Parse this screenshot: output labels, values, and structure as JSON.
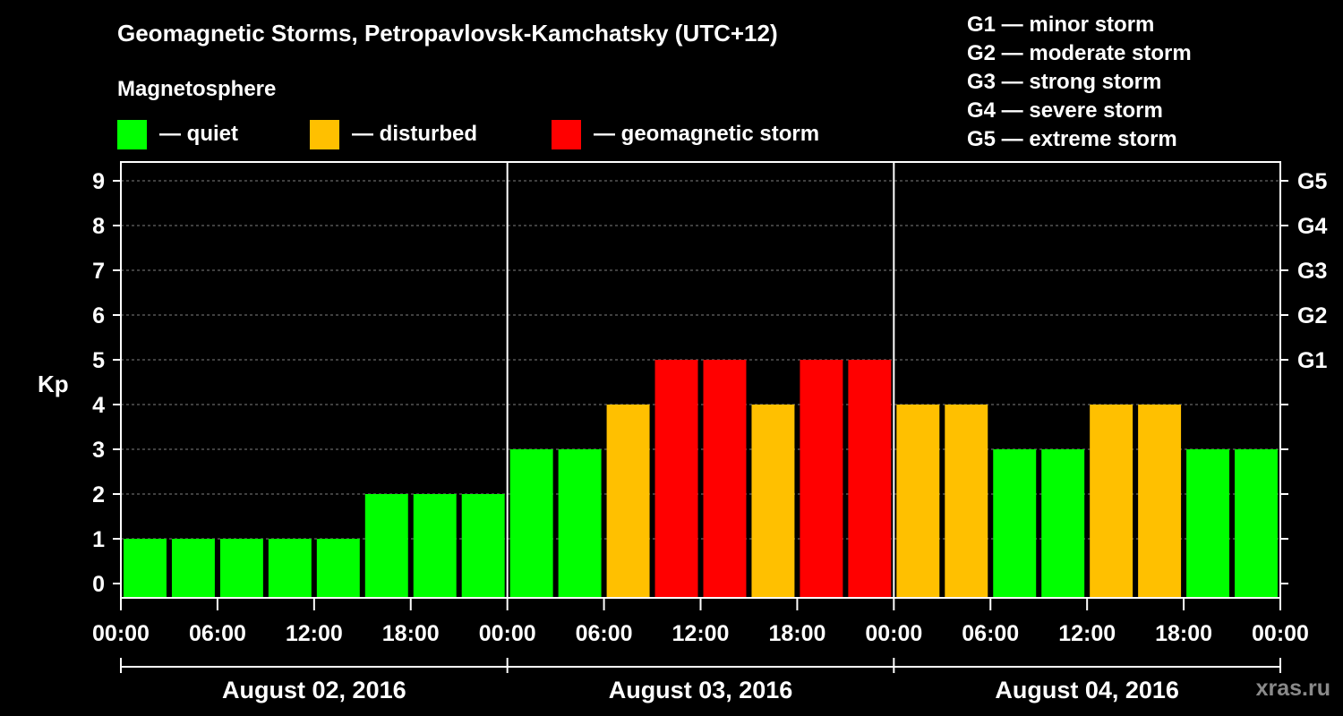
{
  "title": "Geomagnetic Storms, Petropavlovsk-Kamchatsky (UTC+12)",
  "legend": {
    "heading": "Magnetosphere",
    "items": [
      {
        "label": "— quiet",
        "color": "#00ff00"
      },
      {
        "label": "— disturbed",
        "color": "#ffc000"
      },
      {
        "label": "— geomagnetic storm",
        "color": "#ff0000"
      }
    ]
  },
  "g_levels": [
    "G1 — minor storm",
    "G2 — moderate storm",
    "G3 — strong storm",
    "G4 — severe storm",
    "G5 — extreme storm"
  ],
  "watermark": "xras.ru",
  "colors": {
    "quiet": "#00ff00",
    "disturbed": "#ffc000",
    "storm": "#ff0000",
    "background": "#000000",
    "grid": "#7f7f7f"
  },
  "chart_data": {
    "type": "bar",
    "ylabel": "Kp",
    "ylim": [
      0,
      9
    ],
    "yticks": [
      0,
      1,
      2,
      3,
      4,
      5,
      6,
      7,
      8,
      9
    ],
    "right_axis_labels": [
      {
        "kp": 5,
        "label": "G1"
      },
      {
        "kp": 6,
        "label": "G2"
      },
      {
        "kp": 7,
        "label": "G3"
      },
      {
        "kp": 8,
        "label": "G4"
      },
      {
        "kp": 9,
        "label": "G5"
      }
    ],
    "xtick_labels": [
      "00:00",
      "06:00",
      "12:00",
      "18:00",
      "00:00",
      "06:00",
      "12:00",
      "18:00",
      "00:00",
      "06:00",
      "12:00",
      "18:00",
      "00:00"
    ],
    "dates": [
      "August 02, 2016",
      "August 03, 2016",
      "August 04, 2016"
    ],
    "bins_per_day": 8,
    "bin_hours": 3,
    "values": [
      1,
      1,
      1,
      1,
      1,
      2,
      2,
      2,
      3,
      3,
      4,
      5,
      5,
      4,
      5,
      5,
      4,
      4,
      3,
      3,
      4,
      4,
      3,
      3
    ],
    "categories": [
      "quiet",
      "quiet",
      "quiet",
      "quiet",
      "quiet",
      "quiet",
      "quiet",
      "quiet",
      "quiet",
      "quiet",
      "disturbed",
      "storm",
      "storm",
      "disturbed",
      "storm",
      "storm",
      "disturbed",
      "disturbed",
      "quiet",
      "quiet",
      "disturbed",
      "disturbed",
      "quiet",
      "quiet"
    ],
    "grid": true
  }
}
